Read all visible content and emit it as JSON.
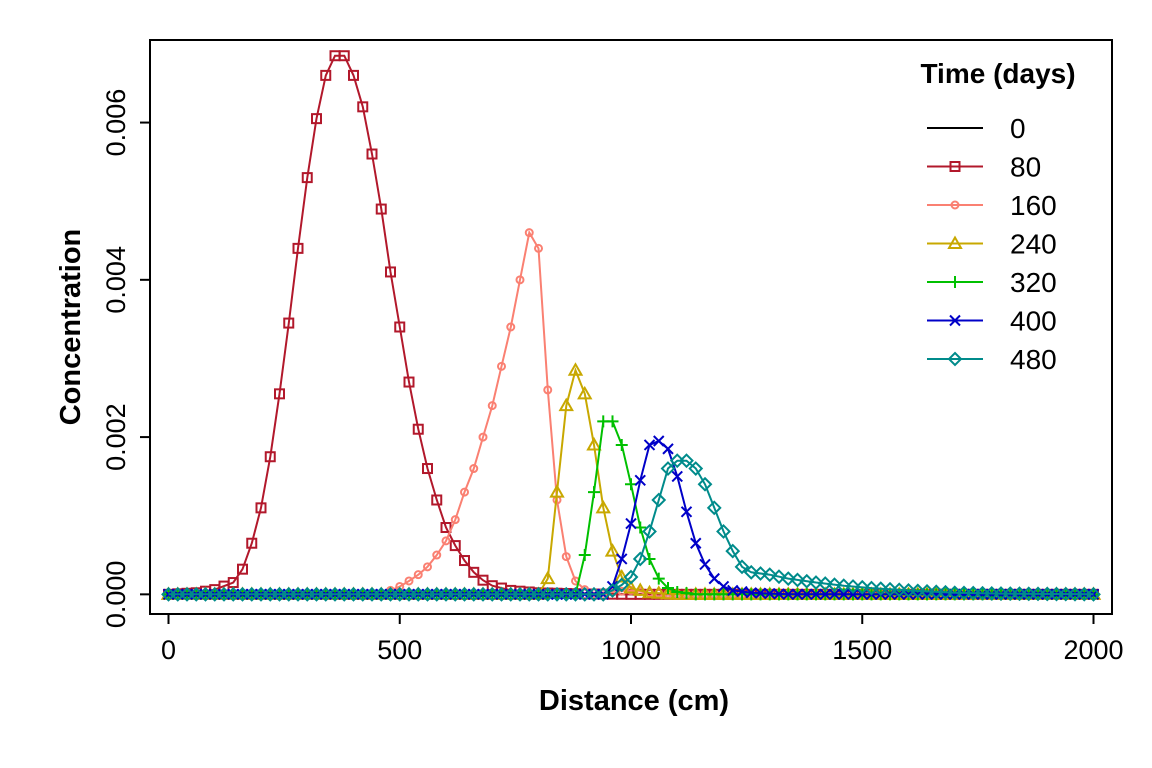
{
  "chart_data": {
    "type": "line",
    "title": "",
    "xlabel": "Distance (cm)",
    "ylabel": "Concentration",
    "xlim": [
      -40,
      2040
    ],
    "ylim": [
      -0.00025,
      0.00705
    ],
    "x_ticks": [
      0,
      500,
      1000,
      1500,
      2000
    ],
    "y_ticks": [
      0.0,
      0.002,
      0.004,
      0.006
    ],
    "x_tick_labels": [
      "0",
      "500",
      "1000",
      "1500",
      "2000"
    ],
    "y_tick_labels": [
      "0.000",
      "0.002",
      "0.004",
      "0.006"
    ],
    "grid": false,
    "legend": {
      "title": "Time (days)",
      "placement": "top-right"
    },
    "x_spacing": 20,
    "x_range": [
      0,
      2000
    ],
    "series": [
      {
        "name": "0",
        "color": "#000000",
        "marker": "none",
        "points": [
          [
            0,
            0
          ],
          [
            2000,
            0
          ]
        ]
      },
      {
        "name": "80",
        "color": "#B2182B",
        "marker": "square",
        "points": [
          [
            0,
            0
          ],
          [
            60,
            2e-05
          ],
          [
            100,
            6e-05
          ],
          [
            140,
            0.00015
          ],
          [
            160,
            0.00032
          ],
          [
            180,
            0.00065
          ],
          [
            200,
            0.0011
          ],
          [
            220,
            0.00175
          ],
          [
            240,
            0.00255
          ],
          [
            260,
            0.00345
          ],
          [
            280,
            0.0044
          ],
          [
            300,
            0.0053
          ],
          [
            320,
            0.00605
          ],
          [
            340,
            0.0066
          ],
          [
            360,
            0.00685
          ],
          [
            380,
            0.00685
          ],
          [
            400,
            0.0066
          ],
          [
            420,
            0.0062
          ],
          [
            440,
            0.0056
          ],
          [
            460,
            0.0049
          ],
          [
            480,
            0.0041
          ],
          [
            500,
            0.0034
          ],
          [
            520,
            0.0027
          ],
          [
            540,
            0.0021
          ],
          [
            560,
            0.0016
          ],
          [
            580,
            0.0012
          ],
          [
            600,
            0.00085
          ],
          [
            620,
            0.00062
          ],
          [
            640,
            0.00043
          ],
          [
            660,
            0.00028
          ],
          [
            680,
            0.00018
          ],
          [
            700,
            0.00011
          ],
          [
            740,
            5e-05
          ],
          [
            800,
            2e-05
          ],
          [
            900,
            5e-06
          ],
          [
            1000,
            0
          ],
          [
            2000,
            0
          ]
        ]
      },
      {
        "name": "160",
        "color": "#FA8072",
        "marker": "circle",
        "points": [
          [
            0,
            0
          ],
          [
            460,
            0
          ],
          [
            480,
            5e-05
          ],
          [
            500,
            0.0001
          ],
          [
            520,
            0.00017
          ],
          [
            540,
            0.00025
          ],
          [
            560,
            0.00035
          ],
          [
            580,
            0.0005
          ],
          [
            600,
            0.00068
          ],
          [
            620,
            0.00095
          ],
          [
            640,
            0.0013
          ],
          [
            660,
            0.0016
          ],
          [
            680,
            0.002
          ],
          [
            700,
            0.0024
          ],
          [
            720,
            0.0029
          ],
          [
            740,
            0.0034
          ],
          [
            760,
            0.004
          ],
          [
            780,
            0.0046
          ],
          [
            800,
            0.0044
          ],
          [
            820,
            0.0026
          ],
          [
            840,
            0.0012
          ],
          [
            860,
            0.00048
          ],
          [
            880,
            0.00017
          ],
          [
            900,
            6e-05
          ],
          [
            920,
            2e-05
          ],
          [
            960,
            3e-05
          ],
          [
            1000,
            5e-05
          ],
          [
            1040,
            2e-05
          ],
          [
            1100,
            0
          ],
          [
            2000,
            0
          ]
        ]
      },
      {
        "name": "240",
        "color": "#C8A800",
        "marker": "triangle",
        "points": [
          [
            0,
            0
          ],
          [
            800,
            0
          ],
          [
            820,
            0.0002
          ],
          [
            840,
            0.0013
          ],
          [
            860,
            0.0024
          ],
          [
            880,
            0.00285
          ],
          [
            900,
            0.00255
          ],
          [
            920,
            0.0019
          ],
          [
            940,
            0.0011
          ],
          [
            960,
            0.00055
          ],
          [
            980,
            0.00022
          ],
          [
            1000,
            8e-05
          ],
          [
            1040,
            2e-05
          ],
          [
            1100,
            0
          ],
          [
            2000,
            0
          ]
        ]
      },
      {
        "name": "320",
        "color": "#00C000",
        "marker": "plus",
        "points": [
          [
            0,
            0
          ],
          [
            880,
            0
          ],
          [
            900,
            0.0005
          ],
          [
            920,
            0.0013
          ],
          [
            940,
            0.0022
          ],
          [
            960,
            0.0022
          ],
          [
            980,
            0.0019
          ],
          [
            1000,
            0.0014
          ],
          [
            1020,
            0.00085
          ],
          [
            1040,
            0.00045
          ],
          [
            1060,
            0.0002
          ],
          [
            1080,
            8e-05
          ],
          [
            1100,
            3e-05
          ],
          [
            1140,
            0
          ],
          [
            2000,
            0
          ]
        ]
      },
      {
        "name": "400",
        "color": "#0000C8",
        "marker": "cross",
        "points": [
          [
            0,
            0
          ],
          [
            940,
            0
          ],
          [
            960,
            0.0001
          ],
          [
            980,
            0.00045
          ],
          [
            1000,
            0.0009
          ],
          [
            1020,
            0.00145
          ],
          [
            1040,
            0.0019
          ],
          [
            1060,
            0.00195
          ],
          [
            1080,
            0.00185
          ],
          [
            1100,
            0.0015
          ],
          [
            1120,
            0.00105
          ],
          [
            1140,
            0.00065
          ],
          [
            1160,
            0.00038
          ],
          [
            1180,
            0.0002
          ],
          [
            1200,
            0.0001
          ],
          [
            1220,
            5e-05
          ],
          [
            1260,
            2e-05
          ],
          [
            1340,
            0
          ],
          [
            2000,
            0
          ]
        ]
      },
      {
        "name": "480",
        "color": "#008B8B",
        "marker": "diamond",
        "points": [
          [
            0,
            0
          ],
          [
            940,
            0
          ],
          [
            960,
            5e-05
          ],
          [
            980,
            0.00012
          ],
          [
            1000,
            0.00022
          ],
          [
            1020,
            0.00045
          ],
          [
            1040,
            0.0008
          ],
          [
            1060,
            0.0012
          ],
          [
            1080,
            0.0016
          ],
          [
            1100,
            0.0017
          ],
          [
            1120,
            0.0017
          ],
          [
            1140,
            0.0016
          ],
          [
            1160,
            0.0014
          ],
          [
            1180,
            0.0011
          ],
          [
            1200,
            0.0008
          ],
          [
            1220,
            0.00055
          ],
          [
            1240,
            0.00035
          ],
          [
            1260,
            0.00028
          ],
          [
            1300,
            0.00025
          ],
          [
            1340,
            0.0002
          ],
          [
            1400,
            0.00015
          ],
          [
            1460,
            0.00011
          ],
          [
            1520,
            8e-05
          ],
          [
            1600,
            5e-05
          ],
          [
            1700,
            2e-05
          ],
          [
            1800,
            1e-05
          ],
          [
            2000,
            0
          ]
        ]
      }
    ]
  }
}
